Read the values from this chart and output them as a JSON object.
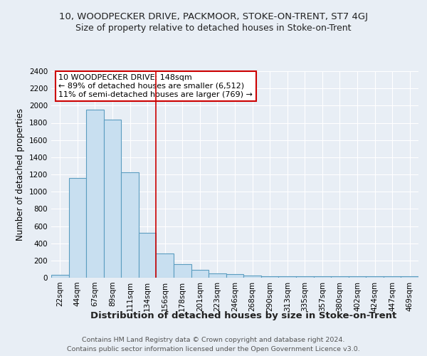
{
  "title": "10, WOODPECKER DRIVE, PACKMOOR, STOKE-ON-TRENT, ST7 4GJ",
  "subtitle": "Size of property relative to detached houses in Stoke-on-Trent",
  "xlabel": "Distribution of detached houses by size in Stoke-on-Trent",
  "ylabel": "Number of detached properties",
  "categories": [
    "22sqm",
    "44sqm",
    "67sqm",
    "89sqm",
    "111sqm",
    "134sqm",
    "156sqm",
    "178sqm",
    "201sqm",
    "223sqm",
    "246sqm",
    "268sqm",
    "290sqm",
    "313sqm",
    "335sqm",
    "357sqm",
    "380sqm",
    "402sqm",
    "424sqm",
    "447sqm",
    "469sqm"
  ],
  "values": [
    30,
    1155,
    1950,
    1840,
    1225,
    520,
    280,
    155,
    90,
    52,
    45,
    25,
    20,
    15,
    13,
    13,
    13,
    13,
    13,
    13,
    13
  ],
  "bar_color": "#c8dff0",
  "bar_edge_color": "#5b9dc0",
  "background_color": "#e8eef5",
  "grid_color": "#ffffff",
  "annotation_line_label": "10 WOODPECKER DRIVE: 148sqm",
  "annotation_text1": "← 89% of detached houses are smaller (6,512)",
  "annotation_text2": "11% of semi-detached houses are larger (769) →",
  "annotation_box_color": "#ffffff",
  "annotation_box_edge": "#cc0000",
  "vline_color": "#cc0000",
  "footer1": "Contains HM Land Registry data © Crown copyright and database right 2024.",
  "footer2": "Contains public sector information licensed under the Open Government Licence v3.0.",
  "ylim": [
    0,
    2400
  ],
  "yticks": [
    0,
    200,
    400,
    600,
    800,
    1000,
    1200,
    1400,
    1600,
    1800,
    2000,
    2200,
    2400
  ],
  "title_fontsize": 9.5,
  "subtitle_fontsize": 9,
  "ylabel_fontsize": 8.5,
  "xlabel_fontsize": 9.5,
  "tick_fontsize": 7.5,
  "footer_fontsize": 6.8
}
